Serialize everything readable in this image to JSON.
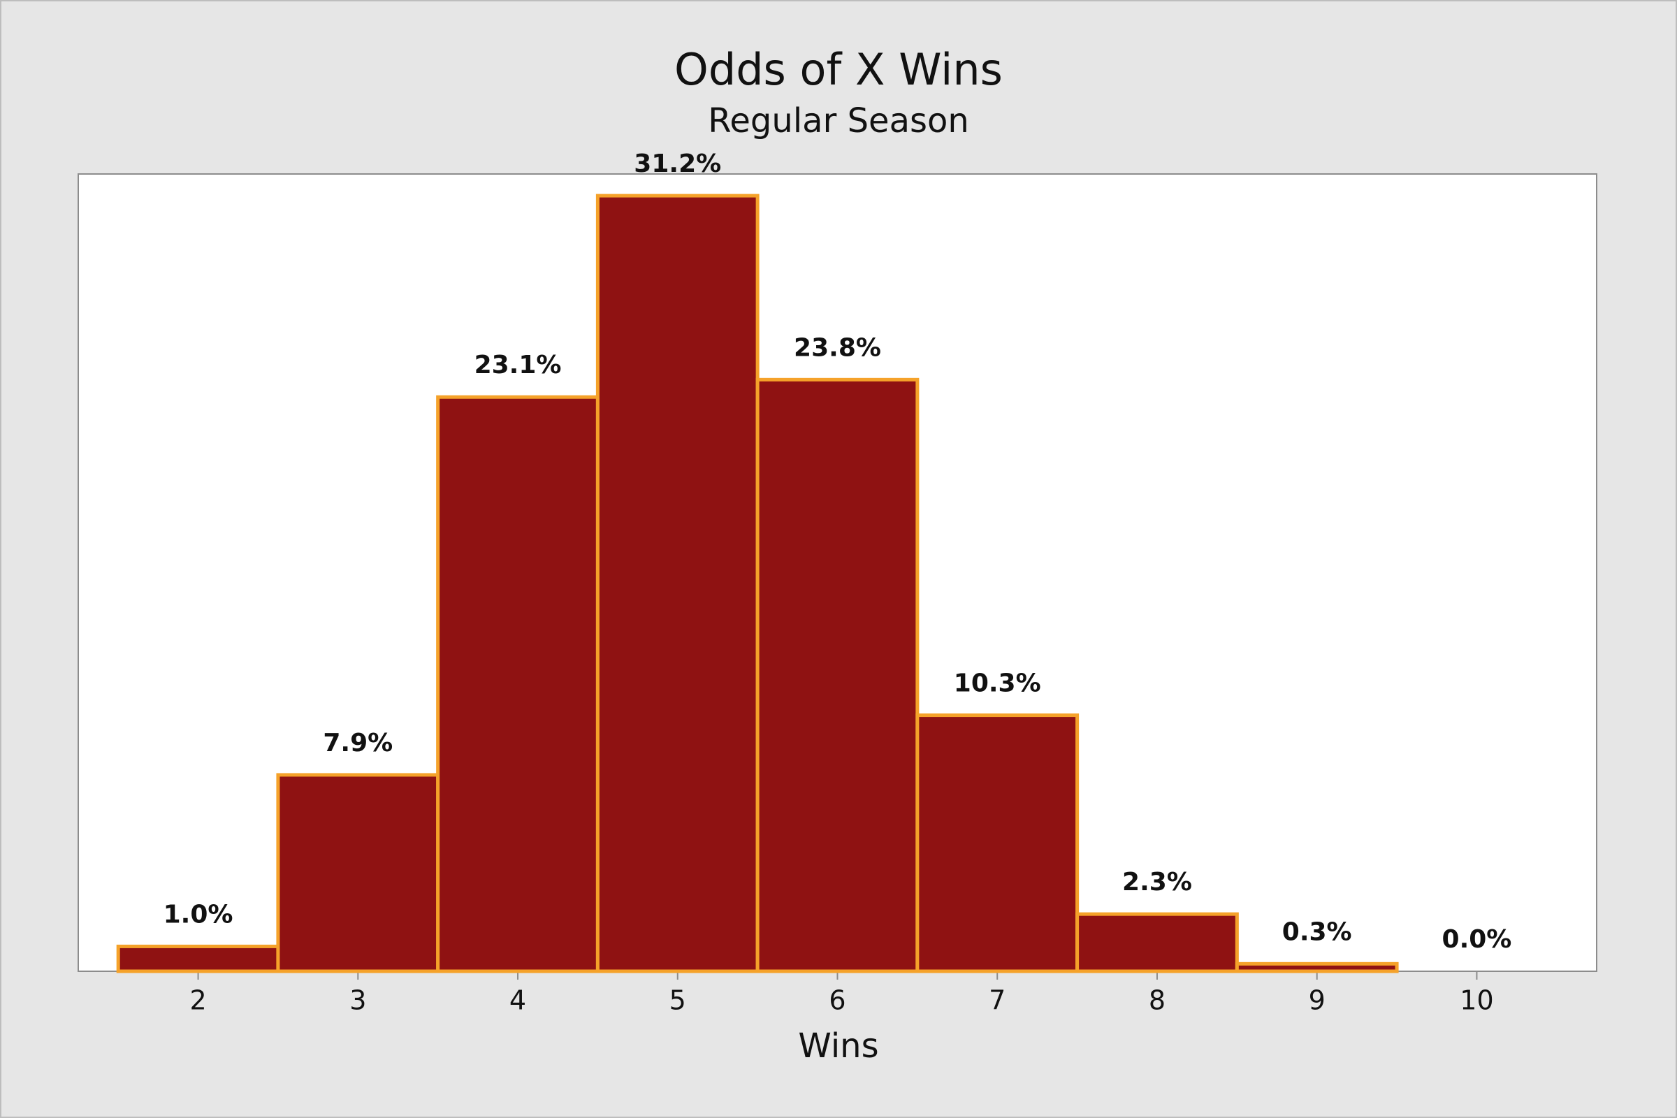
{
  "chart_data": {
    "type": "bar",
    "title": "Odds of X Wins",
    "subtitle": "Regular Season",
    "x_label": "Wins",
    "x": [
      2,
      3,
      4,
      5,
      6,
      7,
      8,
      9,
      10
    ],
    "values": [
      1.0,
      7.9,
      23.1,
      31.2,
      23.8,
      10.3,
      2.3,
      0.3,
      0.0
    ],
    "value_labels": [
      "1.0%",
      "7.9%",
      "23.1%",
      "31.2%",
      "23.8%",
      "10.3%",
      "2.3%",
      "0.3%",
      "0.0%"
    ],
    "xlim": [
      1.25,
      10.75
    ],
    "xticks": [
      2,
      3,
      4,
      5,
      6,
      7,
      8,
      9,
      10
    ],
    "color": "#8f1212",
    "edge_color": "#f5a22a"
  }
}
